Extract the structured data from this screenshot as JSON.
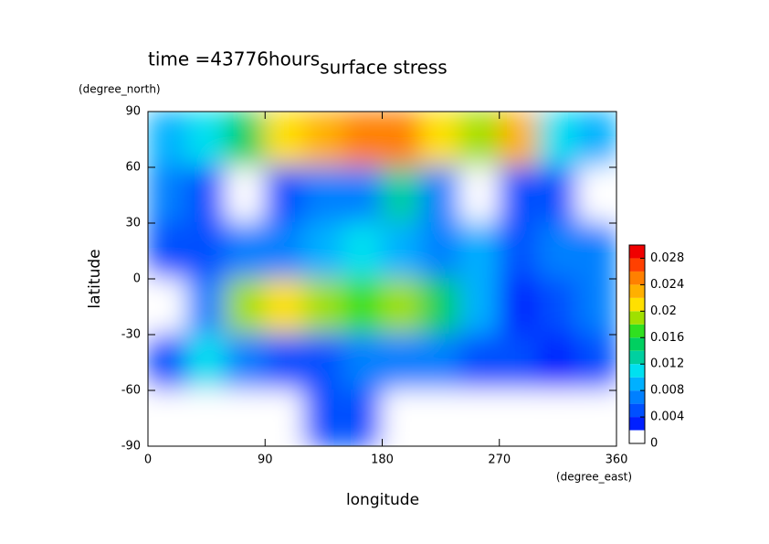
{
  "chart_data": {
    "type": "heatmap",
    "title": "surface stress",
    "subtitle": "time =43776hours",
    "x_label": "longitude",
    "x_unit": "(degree_east)",
    "y_label": "latitude",
    "y_unit": "(degree_north)",
    "xlim": [
      0,
      360
    ],
    "xticks": [
      0,
      90,
      180,
      270,
      360
    ],
    "ylim": [
      -90,
      90
    ],
    "yticks": [
      -90,
      -60,
      -30,
      0,
      30,
      60,
      90
    ],
    "x": [
      15,
      45,
      75,
      105,
      135,
      165,
      195,
      225,
      255,
      285,
      315,
      345
    ],
    "y": [
      75,
      45,
      15,
      -15,
      -45,
      -75
    ],
    "values": [
      [
        0.008,
        0.01,
        0.014,
        0.02,
        0.022,
        0.024,
        0.024,
        0.02,
        0.018,
        0.022,
        0.01,
        0.008
      ],
      [
        0.006,
        0.004,
        0,
        0.004,
        0.006,
        0.006,
        0.012,
        0.006,
        0,
        0.004,
        0.004,
        0
      ],
      [
        0.004,
        0.004,
        0.006,
        0.006,
        0.008,
        0.01,
        0.008,
        0.006,
        0.008,
        0.004,
        0.006,
        0.006
      ],
      [
        0,
        0.006,
        0.018,
        0.02,
        0.018,
        0.016,
        0.018,
        0.014,
        0.008,
        0.002,
        0.004,
        0.006
      ],
      [
        0.004,
        0.01,
        0.006,
        0.004,
        0.004,
        0.006,
        0.006,
        0.006,
        0.004,
        0.004,
        0.002,
        0.004
      ],
      [
        0,
        0,
        0,
        0,
        0.004,
        0.004,
        0,
        0,
        0,
        0,
        0,
        0
      ]
    ],
    "levels": [
      0,
      0.002,
      0.004,
      0.006,
      0.008,
      0.01,
      0.012,
      0.014,
      0.016,
      0.018,
      0.02,
      0.022,
      0.024,
      0.026,
      0.028,
      0.03
    ],
    "colors": [
      "#ffffff",
      "#0020ff",
      "#0050ff",
      "#0080ff",
      "#00b0ff",
      "#00e0f0",
      "#00d0a0",
      "#00d060",
      "#30e020",
      "#a0e000",
      "#ffe000",
      "#ffb000",
      "#ff8000",
      "#ff4000",
      "#f00000"
    ],
    "clim": [
      0,
      0.03
    ],
    "cticks": [
      0,
      0.004,
      0.008,
      0.012,
      0.016,
      0.02,
      0.024,
      0.028
    ]
  }
}
